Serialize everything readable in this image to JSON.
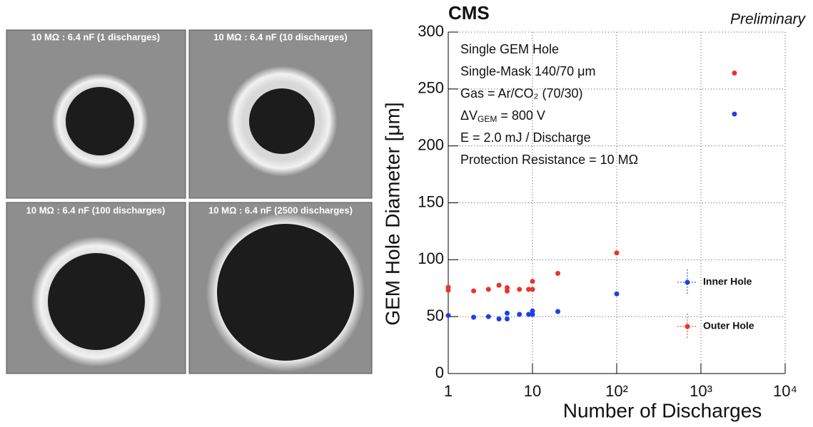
{
  "images": [
    {
      "caption": "10 MΩ : 6.4 nF (1 discharges)"
    },
    {
      "caption": "10 MΩ : 6.4 nF  (10 discharges)"
    },
    {
      "caption": "10 MΩ : 6.4 nF  (100 discharges)"
    },
    {
      "caption": "10 MΩ : 6.4 nF  (2500 discharges)"
    }
  ],
  "chart_data": {
    "type": "scatter",
    "title": "CMS",
    "subtitle": "Preliminary",
    "x_label": "Number of Discharges",
    "y_label": "GEM Hole Diameter [μm]",
    "annotations": [
      "Single GEM Hole",
      "Single-Mask 140/70 μm",
      "Gas = Ar/CO₂ (70/30)",
      {
        "main": "ΔV",
        "sub": "GEM",
        "rest": " = 800 V"
      },
      "E = 2.0 mJ / Discharge",
      "Protection Resistance = 10 MΩ"
    ],
    "x_log": true,
    "xlim": [
      1,
      10000
    ],
    "xticks": [
      1,
      10,
      {
        "value": 100,
        "label": "10²"
      },
      {
        "value": 1000,
        "label": "10³"
      },
      {
        "value": 10000,
        "label": "10⁴"
      }
    ],
    "ylim": [
      0,
      300
    ],
    "yticks": [
      0,
      50,
      100,
      150,
      200,
      250,
      300
    ],
    "grid": true,
    "legend": "right",
    "series": [
      {
        "name": "Inner Hole",
        "color": "#1f3fe6",
        "x": [
          1,
          2,
          3,
          4,
          5,
          5,
          7,
          9,
          10,
          10,
          20,
          100,
          2500
        ],
        "values": [
          51,
          49.5,
          50,
          48,
          53,
          48,
          52,
          52,
          55,
          52,
          54.5,
          70,
          228
        ]
      },
      {
        "name": "Outer Hole",
        "color": "#e8352b",
        "x": [
          1,
          1,
          2,
          3,
          4,
          5,
          5,
          7,
          9,
          10,
          10,
          20,
          100,
          2500
        ],
        "values": [
          75.8,
          73.3,
          72.6,
          74,
          77.6,
          75.5,
          72.5,
          74,
          74,
          81,
          74,
          88,
          106,
          264
        ]
      }
    ]
  }
}
